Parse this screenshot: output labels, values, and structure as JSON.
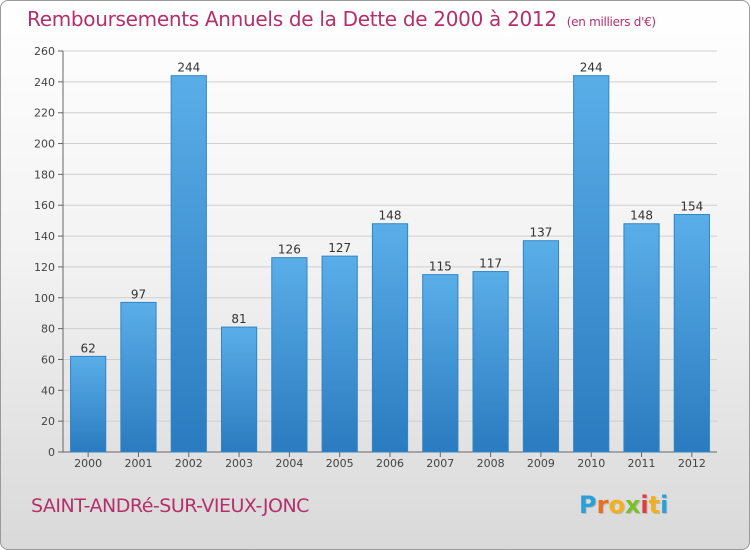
{
  "chart_data": {
    "type": "bar",
    "title": "Remboursements Annuels de la Dette de 2000 à 2012",
    "subtitle": "(en milliers d'€)",
    "categories": [
      "2000",
      "2001",
      "2002",
      "2003",
      "2004",
      "2005",
      "2006",
      "2007",
      "2008",
      "2009",
      "2010",
      "2011",
      "2012"
    ],
    "values": [
      62,
      97,
      244,
      81,
      126,
      127,
      148,
      115,
      117,
      137,
      244,
      148,
      154
    ],
    "data_labels": [
      "62",
      "97",
      "244",
      "81",
      "126",
      "127",
      "148",
      "115",
      "117",
      "137",
      "244",
      "148",
      "154"
    ],
    "ylim": [
      0,
      260
    ],
    "yticks": [
      0,
      20,
      40,
      60,
      80,
      100,
      120,
      140,
      160,
      180,
      200,
      220,
      240,
      260
    ],
    "ytick_labels": [
      "0",
      "20",
      "40",
      "60",
      "80",
      "100",
      "120",
      "140",
      "160",
      "180",
      "200",
      "220",
      "240",
      "260"
    ],
    "xlabel": "",
    "ylabel": "",
    "grid": true,
    "legend": "none",
    "colors": {
      "bar_top": "#5aaee8",
      "bar_bottom": "#2a7bbf",
      "grid": "#cfcfcf",
      "title": "#b5306a"
    }
  },
  "footer": {
    "commune": "SAINT-ANDRé-SUR-VIEUX-JONC"
  },
  "brand": {
    "letters": [
      "P",
      "r",
      "o",
      "x",
      "i",
      "t",
      "i"
    ],
    "colors": [
      "#2aa0d8",
      "#e8701e",
      "#f2b01e",
      "#7cbf2a",
      "#e23b3b",
      "#f2b01e",
      "#2aa0d8"
    ]
  }
}
